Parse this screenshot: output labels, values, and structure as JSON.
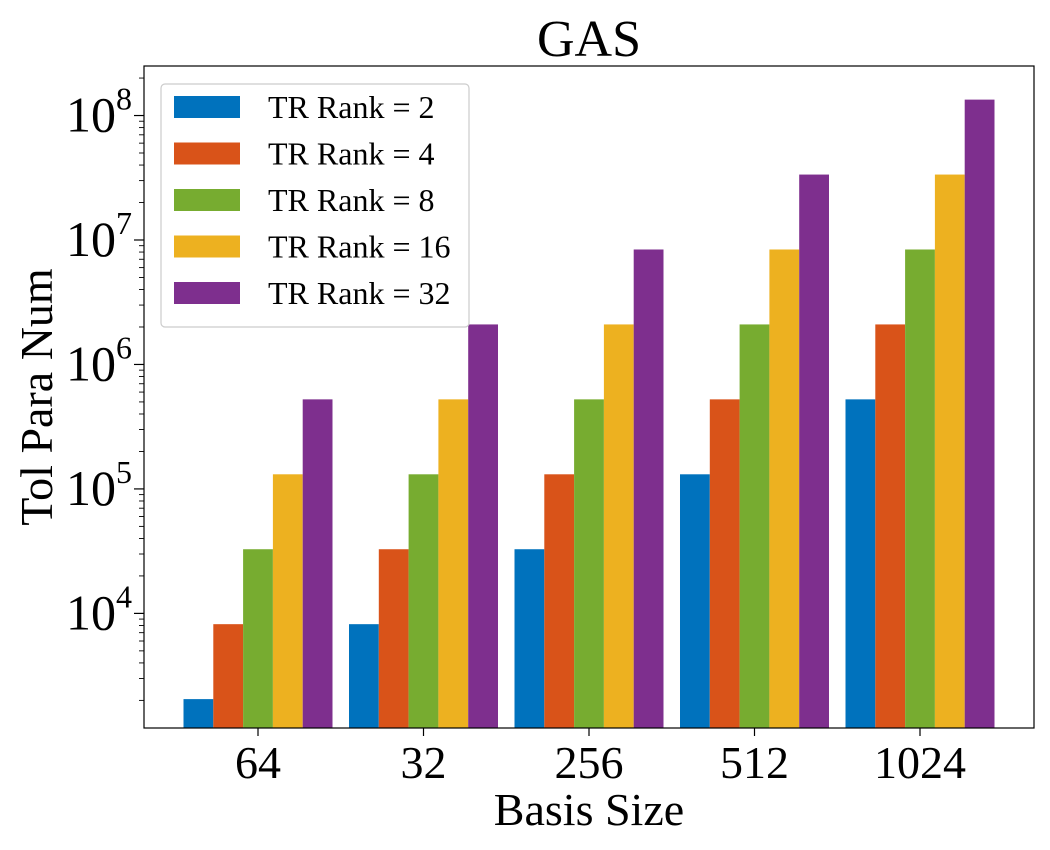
{
  "chart_data": {
    "type": "bar",
    "title": "GAS",
    "xlabel": "Basis Size",
    "ylabel": "Tol Para Num",
    "yscale": "log",
    "ylim": [
      1200,
      250000000
    ],
    "categories": [
      "64",
      "32",
      "256",
      "512",
      "1024"
    ],
    "series": [
      {
        "name": "TR Rank = 2",
        "color": "#0072BD",
        "values": [
          2048,
          8192,
          32768,
          131072,
          524288
        ]
      },
      {
        "name": "TR Rank = 4",
        "color": "#D95319",
        "values": [
          8192,
          32768,
          131072,
          524288,
          2097152
        ]
      },
      {
        "name": "TR Rank = 8",
        "color": "#77AC30",
        "values": [
          32768,
          131072,
          524288,
          2097152,
          8388608
        ]
      },
      {
        "name": "TR Rank = 16",
        "color": "#EDB120",
        "values": [
          131072,
          524288,
          2097152,
          8388608,
          33554432
        ]
      },
      {
        "name": "TR Rank = 32",
        "color": "#7E2F8E",
        "values": [
          524288,
          2097152,
          8388608,
          33554432,
          134217728
        ]
      }
    ],
    "yticks": [
      {
        "value": 10000,
        "base": "10",
        "exp": "4"
      },
      {
        "value": 100000,
        "base": "10",
        "exp": "5"
      },
      {
        "value": 1000000,
        "base": "10",
        "exp": "6"
      },
      {
        "value": 10000000,
        "base": "10",
        "exp": "7"
      },
      {
        "value": 100000000,
        "base": "10",
        "exp": "8"
      }
    ],
    "legend_position": "top-left",
    "grid": false
  }
}
